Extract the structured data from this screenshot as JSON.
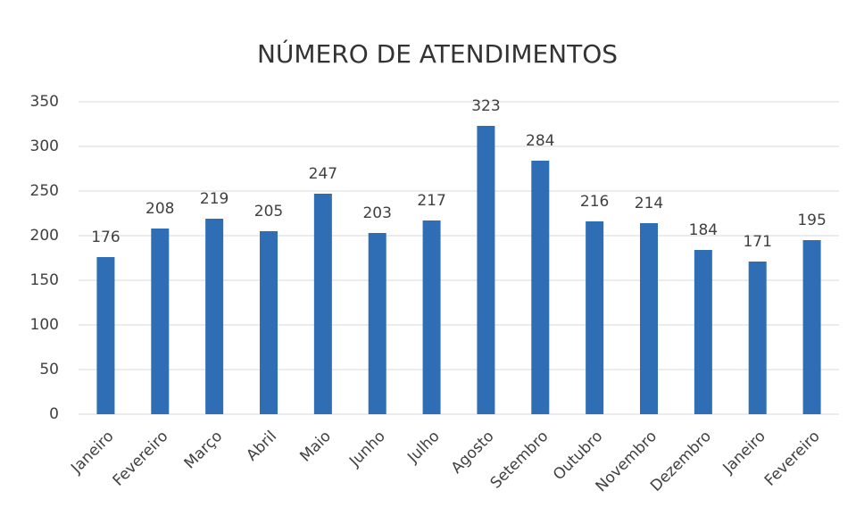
{
  "chart_data": {
    "type": "bar",
    "title": "NÚMERO DE ATENDIMENTOS",
    "categories": [
      "Janeiro",
      "Fevereiro",
      "Março",
      "Abril",
      "Maio",
      "Junho",
      "Julho",
      "Agosto",
      "Setembro",
      "Outubro",
      "Novembro",
      "Dezembro",
      "Janeiro",
      "Fevereiro"
    ],
    "values": [
      176,
      208,
      219,
      205,
      247,
      203,
      217,
      323,
      284,
      216,
      214,
      184,
      171,
      195
    ],
    "color": "#2f6db5",
    "ylim": [
      0,
      350
    ],
    "yticks": [
      0,
      50,
      100,
      150,
      200,
      250,
      300,
      350
    ],
    "grid": true
  }
}
